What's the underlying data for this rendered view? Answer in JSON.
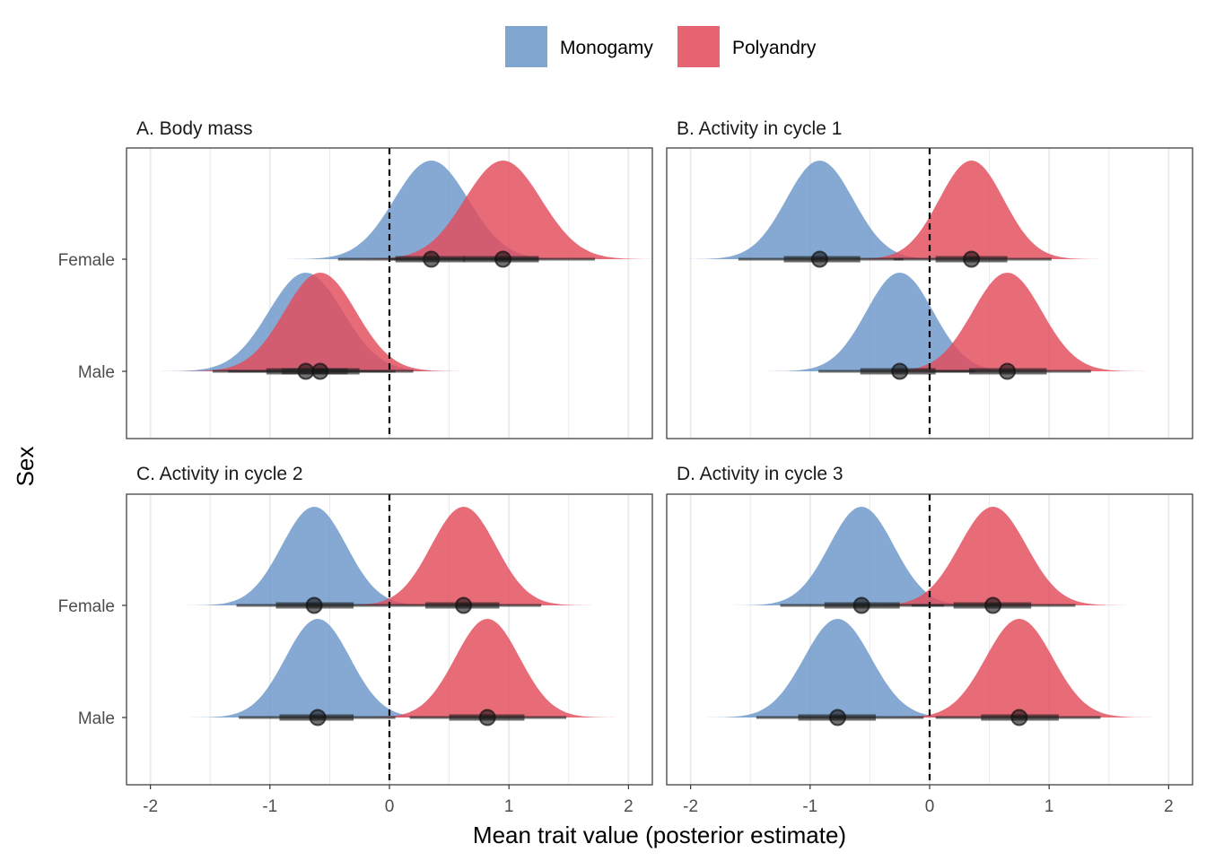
{
  "legend": {
    "items": [
      {
        "label": "Monogamy",
        "color": "#6a96c8"
      },
      {
        "label": "Polyandry",
        "color": "#e34a5a"
      }
    ]
  },
  "axes": {
    "xlabel": "Mean trait value (posterior estimate)",
    "ylabel": "Sex"
  },
  "colors": {
    "monogamy": "#6a96c8",
    "polyandry": "#e34a5a",
    "reference_line": "#000000",
    "interval": "#222222"
  },
  "chart_data": {
    "type": "density",
    "xlim": [
      -2.2,
      2.2
    ],
    "x_ticks": [
      -2,
      -1,
      0,
      1,
      2
    ],
    "x_tick_labels": [
      "-2",
      "-1",
      "0",
      "1",
      "2"
    ],
    "y_categories": [
      "Female",
      "Male"
    ],
    "reference_line_x": 0,
    "grid": true,
    "legend_position": "top",
    "panels": [
      {
        "title": "A. Body mass",
        "series": [
          {
            "group": "Monogamy",
            "sex": "Female",
            "median": 0.35,
            "sd": 0.31,
            "ci66": [
              0.05,
              0.63
            ],
            "ci95": [
              -0.43,
              1.25
            ]
          },
          {
            "group": "Polyandry",
            "sex": "Female",
            "median": 0.95,
            "sd": 0.32,
            "ci66": [
              0.62,
              1.25
            ],
            "ci95": [
              0.0,
              1.72
            ]
          },
          {
            "group": "Monogamy",
            "sex": "Male",
            "median": -0.7,
            "sd": 0.31,
            "ci66": [
              -1.03,
              -0.35
            ],
            "ci95": [
              -1.48,
              0.05
            ]
          },
          {
            "group": "Polyandry",
            "sex": "Male",
            "median": -0.58,
            "sd": 0.3,
            "ci66": [
              -0.9,
              -0.25
            ],
            "ci95": [
              -1.35,
              0.2
            ]
          }
        ]
      },
      {
        "title": "B. Activity in cycle 1",
        "series": [
          {
            "group": "Monogamy",
            "sex": "Female",
            "median": -0.92,
            "sd": 0.28,
            "ci66": [
              -1.22,
              -0.58
            ],
            "ci95": [
              -1.6,
              -0.22
            ]
          },
          {
            "group": "Polyandry",
            "sex": "Female",
            "median": 0.35,
            "sd": 0.27,
            "ci66": [
              0.05,
              0.65
            ],
            "ci95": [
              -0.3,
              1.02
            ]
          },
          {
            "group": "Monogamy",
            "sex": "Male",
            "median": -0.25,
            "sd": 0.28,
            "ci66": [
              -0.58,
              0.05
            ],
            "ci95": [
              -0.93,
              0.38
            ]
          },
          {
            "group": "Polyandry",
            "sex": "Male",
            "median": 0.65,
            "sd": 0.29,
            "ci66": [
              0.33,
              0.98
            ],
            "ci95": [
              0.0,
              1.35
            ]
          }
        ]
      },
      {
        "title": "C. Activity in cycle 2",
        "series": [
          {
            "group": "Monogamy",
            "sex": "Female",
            "median": -0.63,
            "sd": 0.27,
            "ci66": [
              -0.95,
              -0.3
            ],
            "ci95": [
              -1.28,
              0.0
            ]
          },
          {
            "group": "Polyandry",
            "sex": "Female",
            "median": 0.62,
            "sd": 0.27,
            "ci66": [
              0.3,
              0.92
            ],
            "ci95": [
              0.0,
              1.27
            ]
          },
          {
            "group": "Monogamy",
            "sex": "Male",
            "median": -0.6,
            "sd": 0.27,
            "ci66": [
              -0.92,
              -0.3
            ],
            "ci95": [
              -1.26,
              0.05
            ]
          },
          {
            "group": "Polyandry",
            "sex": "Male",
            "median": 0.82,
            "sd": 0.27,
            "ci66": [
              0.5,
              1.13
            ],
            "ci95": [
              0.17,
              1.48
            ]
          }
        ]
      },
      {
        "title": "D. Activity in cycle 3",
        "series": [
          {
            "group": "Monogamy",
            "sex": "Female",
            "median": -0.57,
            "sd": 0.27,
            "ci66": [
              -0.88,
              -0.25
            ],
            "ci95": [
              -1.25,
              0.12
            ]
          },
          {
            "group": "Polyandry",
            "sex": "Female",
            "median": 0.53,
            "sd": 0.28,
            "ci66": [
              0.2,
              0.85
            ],
            "ci95": [
              -0.15,
              1.22
            ]
          },
          {
            "group": "Monogamy",
            "sex": "Male",
            "median": -0.77,
            "sd": 0.28,
            "ci66": [
              -1.1,
              -0.45
            ],
            "ci95": [
              -1.45,
              -0.05
            ]
          },
          {
            "group": "Polyandry",
            "sex": "Male",
            "median": 0.75,
            "sd": 0.28,
            "ci66": [
              0.43,
              1.08
            ],
            "ci95": [
              0.05,
              1.43
            ]
          }
        ]
      }
    ]
  }
}
